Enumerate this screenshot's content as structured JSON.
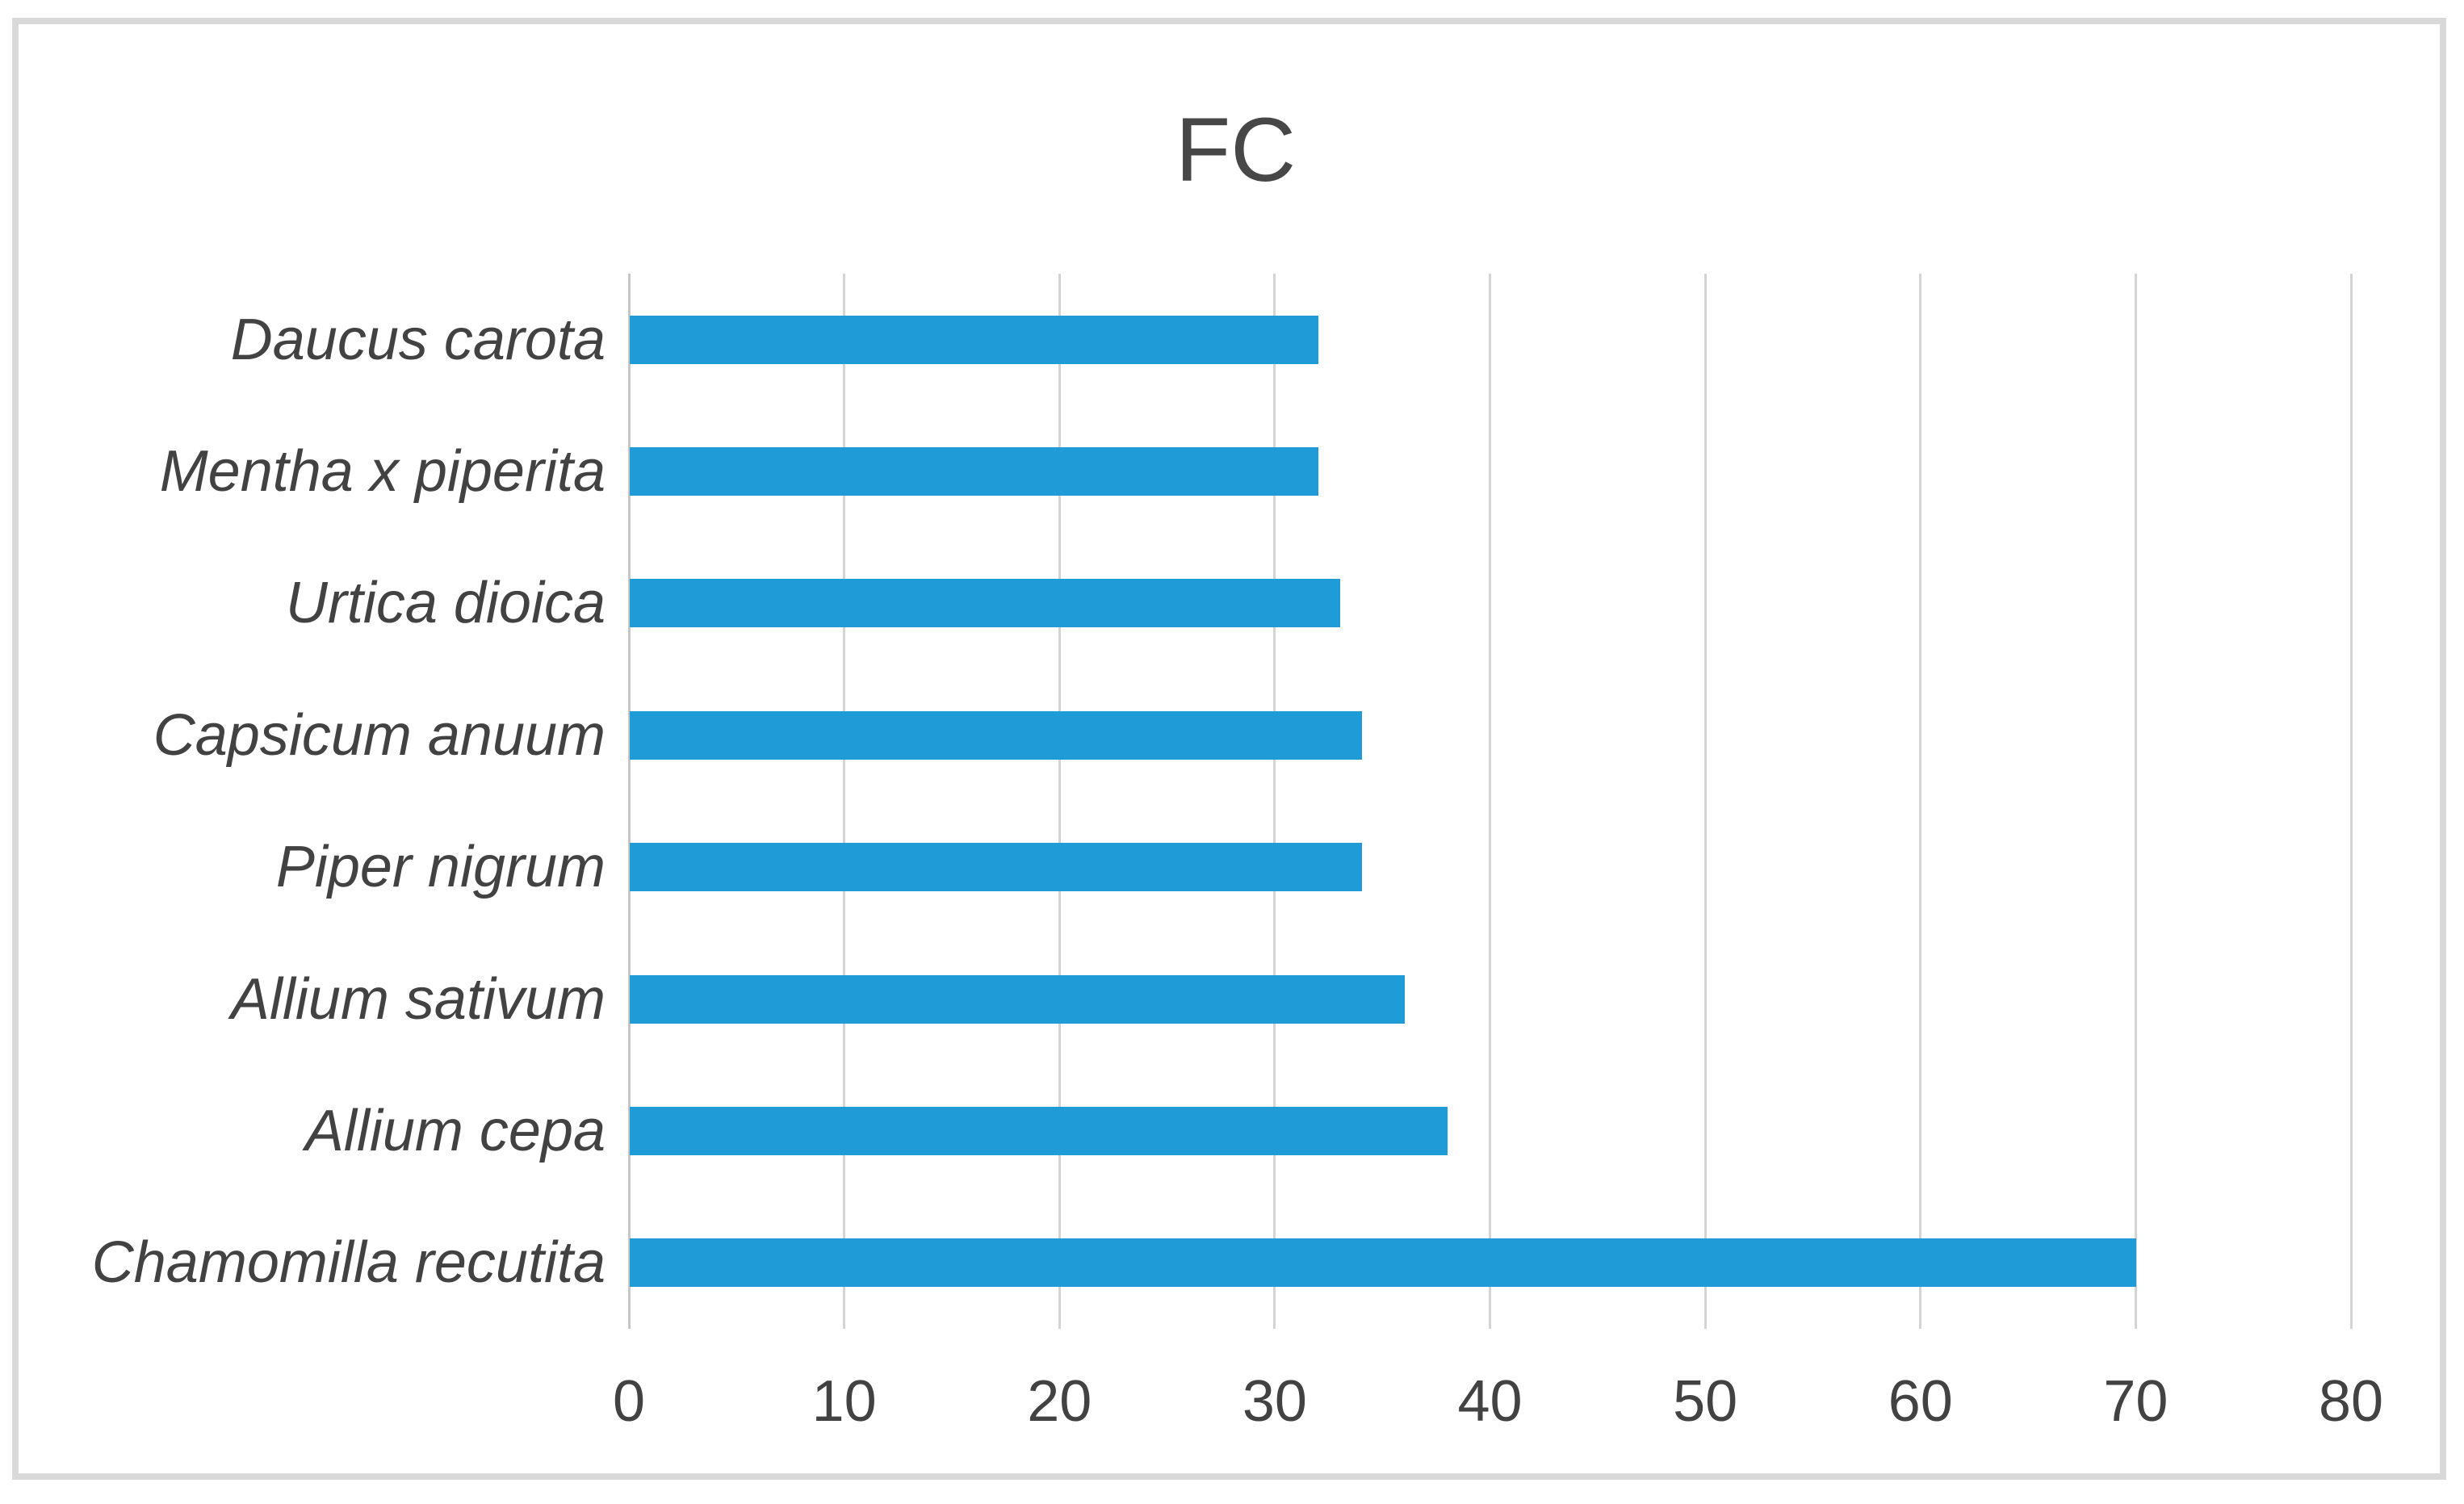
{
  "chart_data": {
    "type": "bar",
    "orientation": "horizontal",
    "title": "FC",
    "categories": [
      "Daucus carota",
      "Mentha x piperita",
      "Urtica dioica",
      "Capsicum anuum",
      "Piper nigrum",
      "Allium sativum",
      "Allium cepa",
      "Chamomilla recutita"
    ],
    "values": [
      32,
      32,
      33,
      34,
      34,
      36,
      38,
      70
    ],
    "xlabel": "",
    "ylabel": "",
    "xlim": [
      0,
      80
    ],
    "x_ticks": [
      0,
      10,
      20,
      30,
      40,
      50,
      60,
      70,
      80
    ],
    "grid": "vertical-only",
    "legend": "none",
    "colors": {
      "bar": "#1f9bd7",
      "gridline": "#d4d4d4",
      "axis_line": "#c6c6c6",
      "text": "#424242",
      "title_text": "#474747",
      "frame_border": "#d9d9d9",
      "background": "#ffffff"
    }
  }
}
